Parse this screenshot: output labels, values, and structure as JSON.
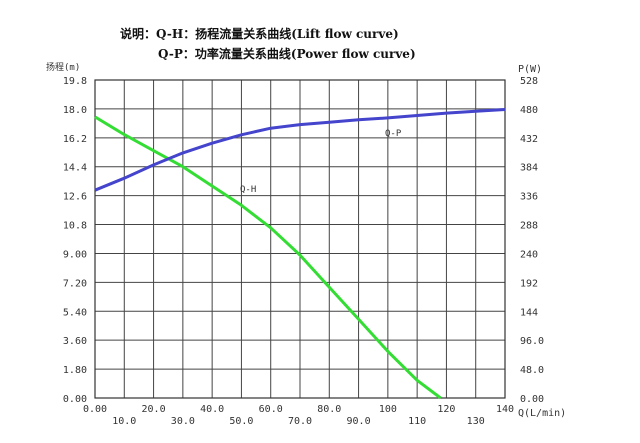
{
  "chart_data": {
    "type": "line",
    "title_lines": [
      "说明：Q-H：扬程流量关系曲线(Lift flow curve)",
      "Q-P：功率流量关系曲线(Power flow curve)"
    ],
    "xlabel": "Q(L/min)",
    "ylabel_left": "扬程(m)",
    "ylabel_right": "P(W)",
    "xlim": [
      0,
      140
    ],
    "ylim_left": [
      0,
      19.8
    ],
    "ylim_right": [
      0,
      528
    ],
    "x_ticks": [
      "0.00",
      "10.0",
      "20.0",
      "30.0",
      "40.0",
      "50.0",
      "60.0",
      "70.0",
      "80.0",
      "90.0",
      "100",
      "110",
      "120",
      "130",
      "140"
    ],
    "y_left_ticks": [
      "0.00",
      "1.80",
      "3.60",
      "5.40",
      "7.20",
      "9.00",
      "10.8",
      "12.6",
      "14.4",
      "16.2",
      "18.0",
      "19.8"
    ],
    "y_right_ticks": [
      "0.00",
      "48.0",
      "96.0",
      "144",
      "192",
      "240",
      "288",
      "336",
      "384",
      "432",
      "480",
      "528"
    ],
    "grid": true,
    "series": [
      {
        "name": "Q-H",
        "axis": "left",
        "color": "#33dd33",
        "x": [
          0,
          10,
          20,
          30,
          40,
          50,
          60,
          70,
          80,
          90,
          100,
          110,
          118
        ],
        "y": [
          17.5,
          16.4,
          15.4,
          14.4,
          13.2,
          12.0,
          10.6,
          8.9,
          6.9,
          4.9,
          2.9,
          1.1,
          0
        ]
      },
      {
        "name": "Q-P",
        "axis": "right",
        "color": "#4444cc",
        "x": [
          0,
          10,
          20,
          30,
          40,
          50,
          60,
          70,
          80,
          90,
          100,
          110,
          120,
          130,
          140
        ],
        "y": [
          345,
          365,
          387,
          407,
          423,
          437,
          448,
          454,
          458,
          462,
          465,
          469,
          473,
          476,
          479
        ]
      }
    ]
  }
}
